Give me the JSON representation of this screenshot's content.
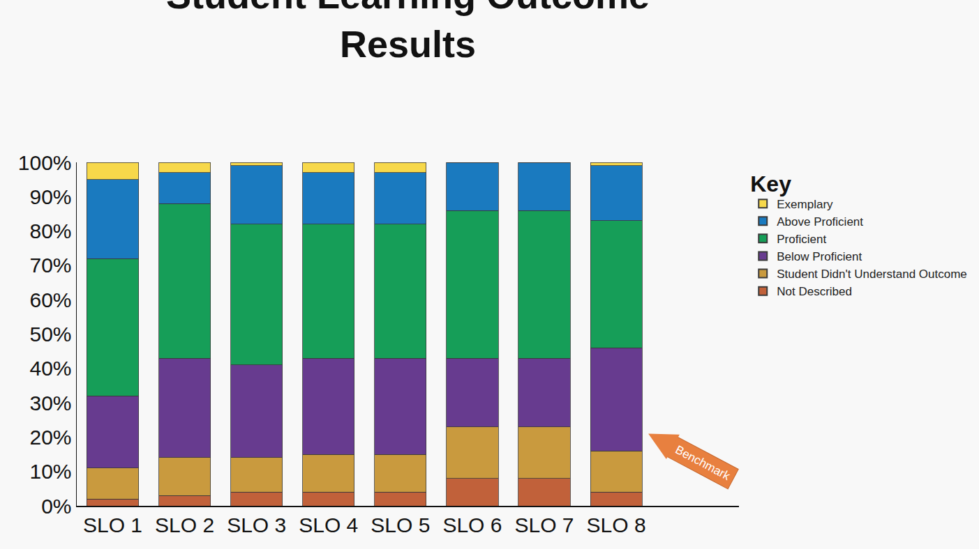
{
  "chart_data": {
    "type": "bar",
    "title": [
      "Student Learning Outcome",
      "Results"
    ],
    "stacked": true,
    "legend": "right",
    "legend_title": "Key",
    "grid": false,
    "categories": [
      "SLO 1",
      "SLO 2",
      "SLO 3",
      "SLO 4",
      "SLO 5",
      "SLO 6",
      "SLO 7",
      "SLO 8"
    ],
    "series": [
      {
        "name": "Not Described",
        "color": "#c1613a",
        "values": [
          2,
          3,
          4,
          4,
          4,
          8,
          8,
          4
        ]
      },
      {
        "name": "Student Didn't Understand Outcome",
        "color": "#c99a3e",
        "values": [
          9,
          11,
          10,
          11,
          11,
          15,
          15,
          12
        ]
      },
      {
        "name": "Below Proficient",
        "color": "#673b8f",
        "values": [
          21,
          29,
          27,
          28,
          28,
          20,
          20,
          30
        ]
      },
      {
        "name": "Proficient",
        "color": "#169e58",
        "values": [
          40,
          45,
          41,
          39,
          39,
          43,
          43,
          37
        ]
      },
      {
        "name": "Above Proficient",
        "color": "#1a7abf",
        "values": [
          23,
          9,
          17,
          15,
          15,
          14,
          14,
          16
        ]
      },
      {
        "name": "Exemplary",
        "color": "#f7d84a",
        "values": [
          5,
          3,
          1,
          3,
          3,
          0,
          0,
          1
        ]
      }
    ],
    "ylim": [
      0,
      100
    ],
    "yticks": [
      {
        "value": 0,
        "label": "0%"
      },
      {
        "value": 10,
        "label": "10%"
      },
      {
        "value": 20,
        "label": "20%"
      },
      {
        "value": 30,
        "label": "30%"
      },
      {
        "value": 40,
        "label": "40%"
      },
      {
        "value": 50,
        "label": "50%"
      },
      {
        "value": 60,
        "label": "60%"
      },
      {
        "value": 70,
        "label": "70%"
      },
      {
        "value": 80,
        "label": "80%"
      },
      {
        "value": 90,
        "label": "90%"
      },
      {
        "value": 100,
        "label": "100%"
      }
    ],
    "annotations": [
      {
        "text": "Benchmark",
        "x": "SLO 8"
      }
    ]
  }
}
